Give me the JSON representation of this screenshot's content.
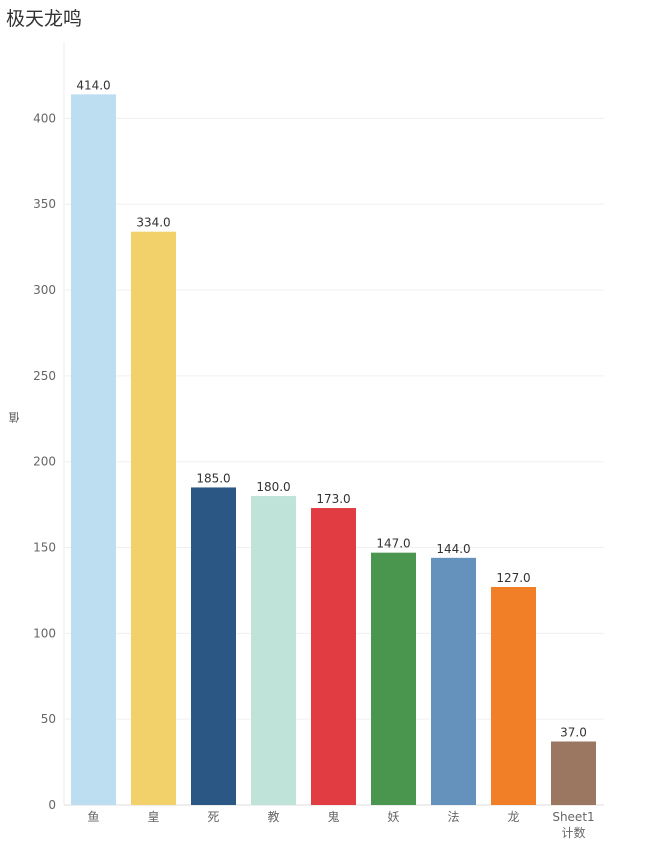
{
  "chart_data": {
    "type": "bar",
    "title": "极天龙鸣",
    "xlabel": "",
    "ylabel": "值",
    "ylim": [
      0,
      440
    ],
    "yticks": [
      0,
      50,
      100,
      150,
      200,
      250,
      300,
      350,
      400
    ],
    "grid": true,
    "legend": "none",
    "categories": [
      {
        "label": "鱼",
        "value": 414.0,
        "value_label": "414.0",
        "color": "#bcdef0"
      },
      {
        "label": "皇",
        "value": 334.0,
        "value_label": "334.0",
        "color": "#f2d16b"
      },
      {
        "label": "死",
        "value": 185.0,
        "value_label": "185.0",
        "color": "#2a5783"
      },
      {
        "label": "教",
        "value": 180.0,
        "value_label": "180.0",
        "color": "#bfe3d8"
      },
      {
        "label": "鬼",
        "value": 173.0,
        "value_label": "173.0",
        "color": "#e03c41"
      },
      {
        "label": "妖",
        "value": 147.0,
        "value_label": "147.0",
        "color": "#4a964e"
      },
      {
        "label": "法",
        "value": 144.0,
        "value_label": "144.0",
        "color": "#6592bd"
      },
      {
        "label": "龙",
        "value": 127.0,
        "value_label": "127.0",
        "color": "#f07f27"
      },
      {
        "label": "Sheet1 计数",
        "label_lines": [
          "Sheet1",
          "计数"
        ],
        "value": 37.0,
        "value_label": "37.0",
        "color": "#9b7660"
      }
    ]
  }
}
